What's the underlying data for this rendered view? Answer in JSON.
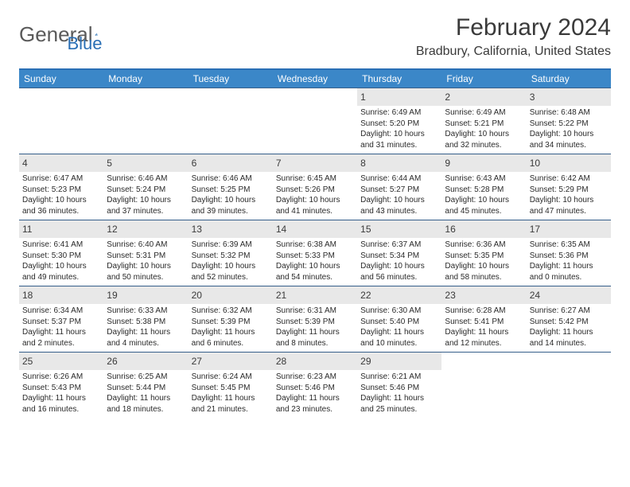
{
  "logo": {
    "text1": "General",
    "text2": "Blue"
  },
  "title": "February 2024",
  "location": "Bradbury, California, United States",
  "colors": {
    "header_bg": "#3b87c8",
    "border": "#365f8a",
    "daynum_bg": "#e8e8e8",
    "logo_gray": "#5a5a5a",
    "logo_blue": "#2a6fb5"
  },
  "day_headers": [
    "Sunday",
    "Monday",
    "Tuesday",
    "Wednesday",
    "Thursday",
    "Friday",
    "Saturday"
  ],
  "weeks": [
    [
      {
        "n": "",
        "sr": "",
        "ss": "",
        "dl": ""
      },
      {
        "n": "",
        "sr": "",
        "ss": "",
        "dl": ""
      },
      {
        "n": "",
        "sr": "",
        "ss": "",
        "dl": ""
      },
      {
        "n": "",
        "sr": "",
        "ss": "",
        "dl": ""
      },
      {
        "n": "1",
        "sr": "Sunrise: 6:49 AM",
        "ss": "Sunset: 5:20 PM",
        "dl": "Daylight: 10 hours and 31 minutes."
      },
      {
        "n": "2",
        "sr": "Sunrise: 6:49 AM",
        "ss": "Sunset: 5:21 PM",
        "dl": "Daylight: 10 hours and 32 minutes."
      },
      {
        "n": "3",
        "sr": "Sunrise: 6:48 AM",
        "ss": "Sunset: 5:22 PM",
        "dl": "Daylight: 10 hours and 34 minutes."
      }
    ],
    [
      {
        "n": "4",
        "sr": "Sunrise: 6:47 AM",
        "ss": "Sunset: 5:23 PM",
        "dl": "Daylight: 10 hours and 36 minutes."
      },
      {
        "n": "5",
        "sr": "Sunrise: 6:46 AM",
        "ss": "Sunset: 5:24 PM",
        "dl": "Daylight: 10 hours and 37 minutes."
      },
      {
        "n": "6",
        "sr": "Sunrise: 6:46 AM",
        "ss": "Sunset: 5:25 PM",
        "dl": "Daylight: 10 hours and 39 minutes."
      },
      {
        "n": "7",
        "sr": "Sunrise: 6:45 AM",
        "ss": "Sunset: 5:26 PM",
        "dl": "Daylight: 10 hours and 41 minutes."
      },
      {
        "n": "8",
        "sr": "Sunrise: 6:44 AM",
        "ss": "Sunset: 5:27 PM",
        "dl": "Daylight: 10 hours and 43 minutes."
      },
      {
        "n": "9",
        "sr": "Sunrise: 6:43 AM",
        "ss": "Sunset: 5:28 PM",
        "dl": "Daylight: 10 hours and 45 minutes."
      },
      {
        "n": "10",
        "sr": "Sunrise: 6:42 AM",
        "ss": "Sunset: 5:29 PM",
        "dl": "Daylight: 10 hours and 47 minutes."
      }
    ],
    [
      {
        "n": "11",
        "sr": "Sunrise: 6:41 AM",
        "ss": "Sunset: 5:30 PM",
        "dl": "Daylight: 10 hours and 49 minutes."
      },
      {
        "n": "12",
        "sr": "Sunrise: 6:40 AM",
        "ss": "Sunset: 5:31 PM",
        "dl": "Daylight: 10 hours and 50 minutes."
      },
      {
        "n": "13",
        "sr": "Sunrise: 6:39 AM",
        "ss": "Sunset: 5:32 PM",
        "dl": "Daylight: 10 hours and 52 minutes."
      },
      {
        "n": "14",
        "sr": "Sunrise: 6:38 AM",
        "ss": "Sunset: 5:33 PM",
        "dl": "Daylight: 10 hours and 54 minutes."
      },
      {
        "n": "15",
        "sr": "Sunrise: 6:37 AM",
        "ss": "Sunset: 5:34 PM",
        "dl": "Daylight: 10 hours and 56 minutes."
      },
      {
        "n": "16",
        "sr": "Sunrise: 6:36 AM",
        "ss": "Sunset: 5:35 PM",
        "dl": "Daylight: 10 hours and 58 minutes."
      },
      {
        "n": "17",
        "sr": "Sunrise: 6:35 AM",
        "ss": "Sunset: 5:36 PM",
        "dl": "Daylight: 11 hours and 0 minutes."
      }
    ],
    [
      {
        "n": "18",
        "sr": "Sunrise: 6:34 AM",
        "ss": "Sunset: 5:37 PM",
        "dl": "Daylight: 11 hours and 2 minutes."
      },
      {
        "n": "19",
        "sr": "Sunrise: 6:33 AM",
        "ss": "Sunset: 5:38 PM",
        "dl": "Daylight: 11 hours and 4 minutes."
      },
      {
        "n": "20",
        "sr": "Sunrise: 6:32 AM",
        "ss": "Sunset: 5:39 PM",
        "dl": "Daylight: 11 hours and 6 minutes."
      },
      {
        "n": "21",
        "sr": "Sunrise: 6:31 AM",
        "ss": "Sunset: 5:39 PM",
        "dl": "Daylight: 11 hours and 8 minutes."
      },
      {
        "n": "22",
        "sr": "Sunrise: 6:30 AM",
        "ss": "Sunset: 5:40 PM",
        "dl": "Daylight: 11 hours and 10 minutes."
      },
      {
        "n": "23",
        "sr": "Sunrise: 6:28 AM",
        "ss": "Sunset: 5:41 PM",
        "dl": "Daylight: 11 hours and 12 minutes."
      },
      {
        "n": "24",
        "sr": "Sunrise: 6:27 AM",
        "ss": "Sunset: 5:42 PM",
        "dl": "Daylight: 11 hours and 14 minutes."
      }
    ],
    [
      {
        "n": "25",
        "sr": "Sunrise: 6:26 AM",
        "ss": "Sunset: 5:43 PM",
        "dl": "Daylight: 11 hours and 16 minutes."
      },
      {
        "n": "26",
        "sr": "Sunrise: 6:25 AM",
        "ss": "Sunset: 5:44 PM",
        "dl": "Daylight: 11 hours and 18 minutes."
      },
      {
        "n": "27",
        "sr": "Sunrise: 6:24 AM",
        "ss": "Sunset: 5:45 PM",
        "dl": "Daylight: 11 hours and 21 minutes."
      },
      {
        "n": "28",
        "sr": "Sunrise: 6:23 AM",
        "ss": "Sunset: 5:46 PM",
        "dl": "Daylight: 11 hours and 23 minutes."
      },
      {
        "n": "29",
        "sr": "Sunrise: 6:21 AM",
        "ss": "Sunset: 5:46 PM",
        "dl": "Daylight: 11 hours and 25 minutes."
      },
      {
        "n": "",
        "sr": "",
        "ss": "",
        "dl": ""
      },
      {
        "n": "",
        "sr": "",
        "ss": "",
        "dl": ""
      }
    ]
  ]
}
